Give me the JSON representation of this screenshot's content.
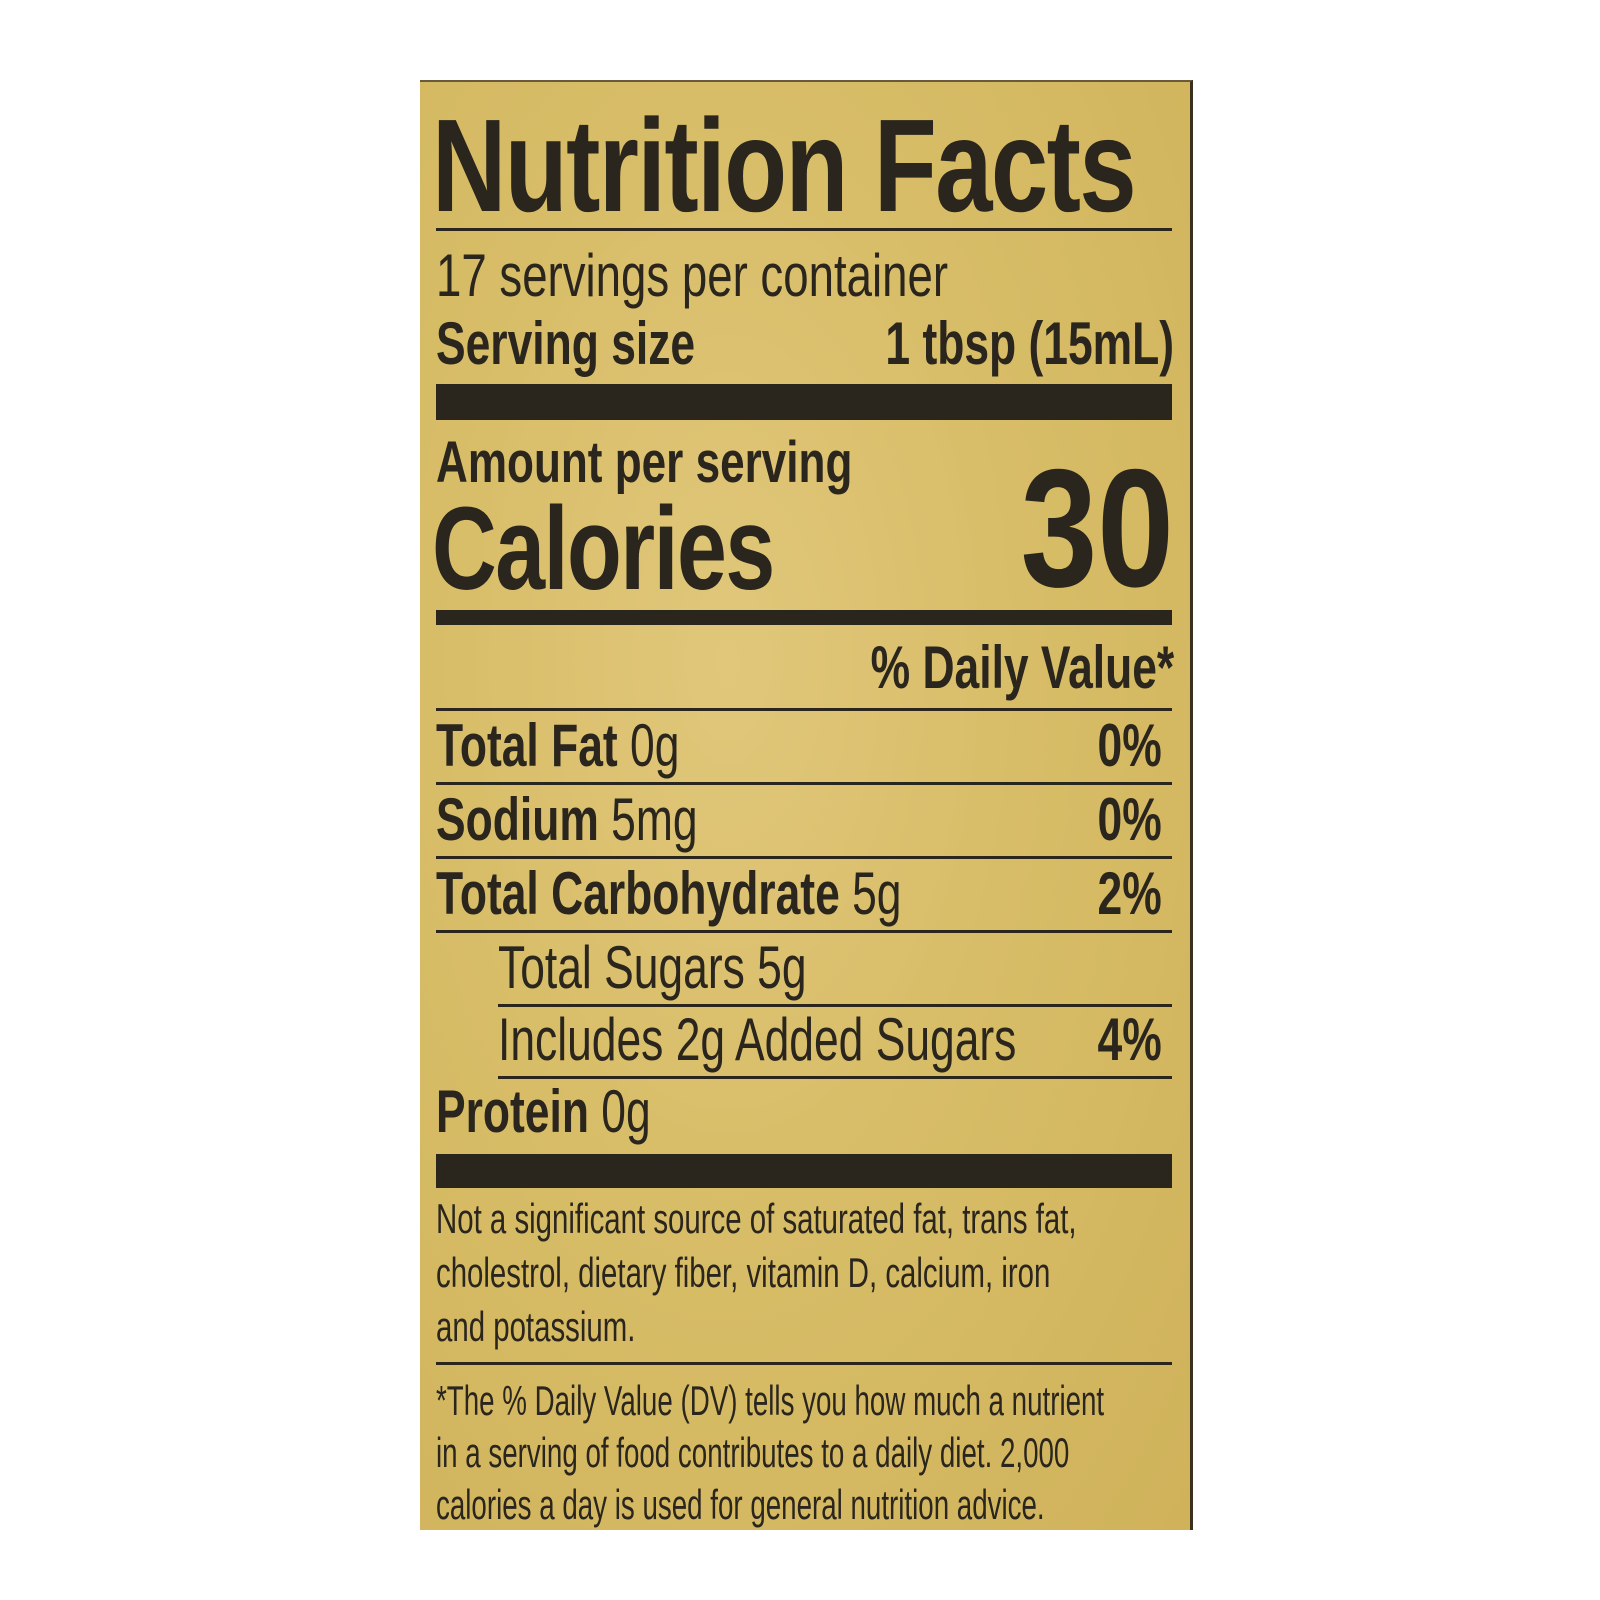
{
  "title": "Nutrition Facts",
  "servings_per_container": "17 servings per container",
  "serving_size_label": "Serving size",
  "serving_size_value": "1 tbsp (15mL)",
  "amount_per_serving": "Amount per serving",
  "calories_label": "Calories",
  "calories_value": "30",
  "daily_value_header": "% Daily Value*",
  "nutrients": [
    {
      "name": "Total Fat",
      "amount": "0g",
      "dv": "0%"
    },
    {
      "name": "Sodium",
      "amount": "5mg",
      "dv": "0%"
    },
    {
      "name": "Total Carbohydrate",
      "amount": "5g",
      "dv": "2%"
    },
    {
      "name": "",
      "amount": "Total Sugars 5g",
      "dv": ""
    },
    {
      "name": "",
      "amount": "Includes 2g Added Sugars",
      "dv": "4%"
    },
    {
      "name": "Protein",
      "amount": "0g",
      "dv": ""
    }
  ],
  "not_significant": [
    "Not a significant source of saturated fat, trans fat,",
    "cholestrol, dietary fiber, vitamin D, calcium, iron",
    "and potassium."
  ],
  "footnote": [
    "*The % Daily Value (DV) tells you how much a nutrient",
    "in a serving of food contributes to a daily diet. 2,000",
    "calories a day is used for general nutrition advice."
  ],
  "colors": {
    "label_background": "#d8bd68",
    "ink": "#2a251d"
  }
}
